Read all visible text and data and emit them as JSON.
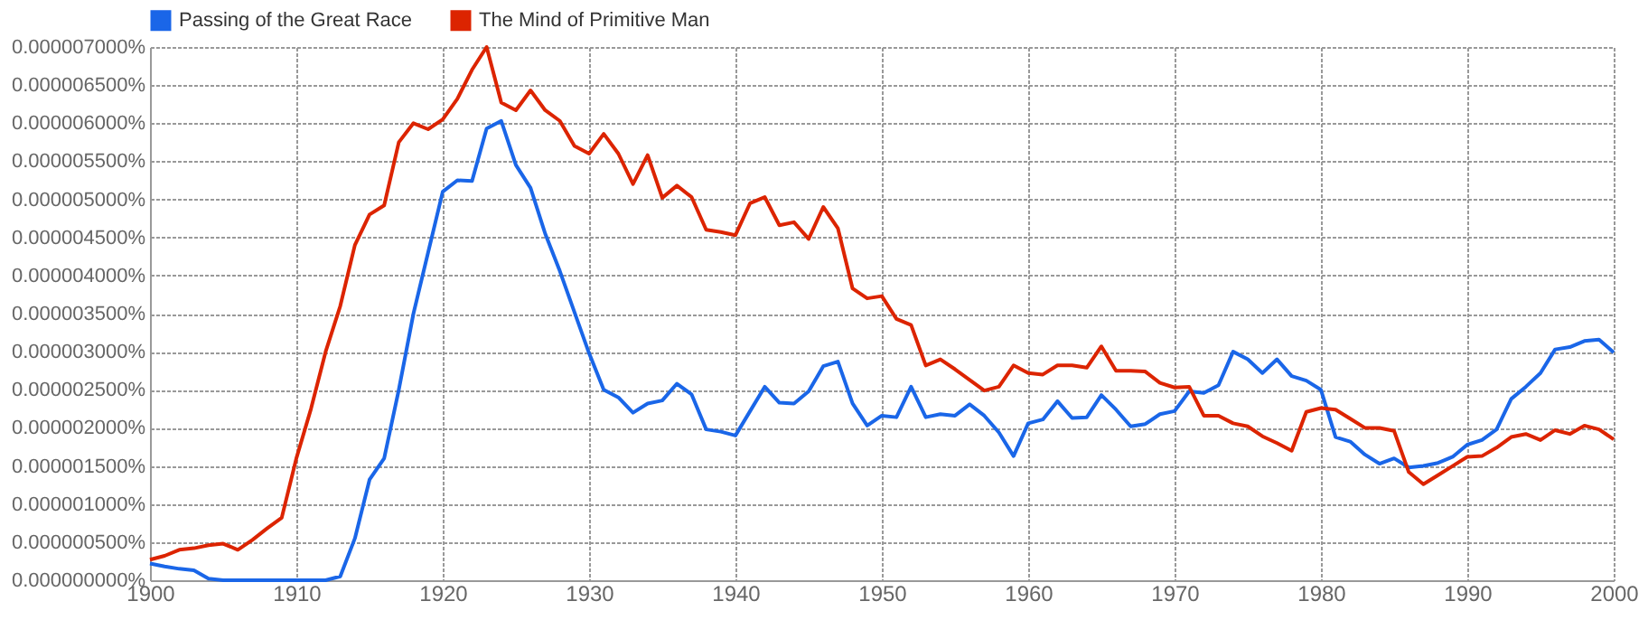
{
  "chart_data": {
    "type": "line",
    "x": [
      1900,
      1901,
      1902,
      1903,
      1904,
      1905,
      1906,
      1907,
      1908,
      1909,
      1910,
      1911,
      1912,
      1913,
      1914,
      1915,
      1916,
      1917,
      1918,
      1919,
      1920,
      1921,
      1922,
      1923,
      1924,
      1925,
      1926,
      1927,
      1928,
      1929,
      1930,
      1931,
      1932,
      1933,
      1934,
      1935,
      1936,
      1937,
      1938,
      1939,
      1940,
      1941,
      1942,
      1943,
      1944,
      1945,
      1946,
      1947,
      1948,
      1949,
      1950,
      1951,
      1952,
      1953,
      1954,
      1955,
      1956,
      1957,
      1958,
      1959,
      1960,
      1961,
      1962,
      1963,
      1964,
      1965,
      1966,
      1967,
      1968,
      1969,
      1970,
      1971,
      1972,
      1973,
      1974,
      1975,
      1976,
      1977,
      1978,
      1979,
      1980,
      1981,
      1982,
      1983,
      1984,
      1985,
      1986,
      1987,
      1988,
      1989,
      1990,
      1991,
      1992,
      1993,
      1994,
      1995,
      1996,
      1997,
      1998,
      1999,
      2000
    ],
    "series": [
      {
        "name": "Passing of the Great Race",
        "color": "#1a66e8",
        "values": [
          2.2e-07,
          1.8e-07,
          1.5e-07,
          1.3e-07,
          2e-08,
          0,
          0,
          0,
          0,
          0,
          0,
          0,
          0,
          5e-08,
          5.5e-07,
          1.32e-06,
          1.6e-06,
          2.5e-06,
          3.5e-06,
          4.3e-06,
          5.1e-06,
          5.25e-06,
          5.24e-06,
          5.93e-06,
          6.03e-06,
          5.45e-06,
          5.15e-06,
          4.55e-06,
          4.06e-06,
          3.52e-06,
          2.98e-06,
          2.5e-06,
          2.4e-06,
          2.2e-06,
          2.32e-06,
          2.36e-06,
          2.58e-06,
          2.44e-06,
          1.98e-06,
          1.95e-06,
          1.9e-06,
          2.22e-06,
          2.54e-06,
          2.33e-06,
          2.32e-06,
          2.48e-06,
          2.81e-06,
          2.87e-06,
          2.32e-06,
          2.03e-06,
          2.16e-06,
          2.14e-06,
          2.54e-06,
          2.14e-06,
          2.18e-06,
          2.16e-06,
          2.31e-06,
          2.16e-06,
          1.94e-06,
          1.63e-06,
          2.06e-06,
          2.11e-06,
          2.35e-06,
          2.13e-06,
          2.14e-06,
          2.43e-06,
          2.24e-06,
          2.02e-06,
          2.05e-06,
          2.18e-06,
          2.22e-06,
          2.48e-06,
          2.46e-06,
          2.56e-06,
          3e-06,
          2.9e-06,
          2.72e-06,
          2.9e-06,
          2.68e-06,
          2.62e-06,
          2.5e-06,
          1.88e-06,
          1.82e-06,
          1.65e-06,
          1.53e-06,
          1.6e-06,
          1.48e-06,
          1.5e-06,
          1.54e-06,
          1.62e-06,
          1.78e-06,
          1.84e-06,
          1.98e-06,
          2.38e-06,
          2.54e-06,
          2.72e-06,
          3.03e-06,
          3.06e-06,
          3.14e-06,
          3.16e-06,
          2.99e-06
        ]
      },
      {
        "name": "The Mind of Primitive Man",
        "color": "#dc2400",
        "values": [
          2.7e-07,
          3.2e-07,
          4e-07,
          4.2e-07,
          4.6e-07,
          4.8e-07,
          4e-07,
          5.3e-07,
          6.8e-07,
          8.2e-07,
          1.6e-06,
          2.25e-06,
          3e-06,
          3.6e-06,
          4.4e-06,
          4.8e-06,
          4.92e-06,
          5.75e-06,
          6e-06,
          5.92e-06,
          6.05e-06,
          6.32e-06,
          6.7e-06,
          7e-06,
          6.27e-06,
          6.17e-06,
          6.43e-06,
          6.17e-06,
          6.03e-06,
          5.7e-06,
          5.6e-06,
          5.86e-06,
          5.6e-06,
          5.2e-06,
          5.58e-06,
          5.02e-06,
          5.18e-06,
          5.03e-06,
          4.6e-06,
          4.57e-06,
          4.53e-06,
          4.95e-06,
          5.03e-06,
          4.66e-06,
          4.7e-06,
          4.48e-06,
          4.9e-06,
          4.62e-06,
          3.83e-06,
          3.7e-06,
          3.73e-06,
          3.43e-06,
          3.35e-06,
          2.82e-06,
          2.9e-06,
          2.77e-06,
          2.63e-06,
          2.49e-06,
          2.54e-06,
          2.82e-06,
          2.72e-06,
          2.7e-06,
          2.82e-06,
          2.82e-06,
          2.79e-06,
          3.07e-06,
          2.75e-06,
          2.75e-06,
          2.74e-06,
          2.59e-06,
          2.53e-06,
          2.54e-06,
          2.16e-06,
          2.16e-06,
          2.06e-06,
          2.02e-06,
          1.89e-06,
          1.8e-06,
          1.7e-06,
          2.21e-06,
          2.26e-06,
          2.24e-06,
          2.12e-06,
          2e-06,
          2e-06,
          1.96e-06,
          1.42e-06,
          1.26e-06,
          1.38e-06,
          1.5e-06,
          1.62e-06,
          1.63e-06,
          1.74e-06,
          1.88e-06,
          1.92e-06,
          1.84e-06,
          1.97e-06,
          1.92e-06,
          2.03e-06,
          1.98e-06,
          1.85e-06
        ]
      }
    ],
    "xlim": [
      1900,
      2000
    ],
    "xticks": [
      1900,
      1910,
      1920,
      1930,
      1940,
      1950,
      1960,
      1970,
      1980,
      1990,
      2000
    ],
    "ylim": [
      0,
      7e-06
    ],
    "yticks": [
      {
        "value": 0,
        "label": "0.000000000%"
      },
      {
        "value": 5e-07,
        "label": "0.000000500%"
      },
      {
        "value": 1e-06,
        "label": "0.000001000%"
      },
      {
        "value": 1.5e-06,
        "label": "0.000001500%"
      },
      {
        "value": 2e-06,
        "label": "0.000002000%"
      },
      {
        "value": 2.5e-06,
        "label": "0.000002500%"
      },
      {
        "value": 3e-06,
        "label": "0.000003000%"
      },
      {
        "value": 3.5e-06,
        "label": "0.000003500%"
      },
      {
        "value": 4e-06,
        "label": "0.000004000%"
      },
      {
        "value": 4.5e-06,
        "label": "0.000004500%"
      },
      {
        "value": 5e-06,
        "label": "0.000005000%"
      },
      {
        "value": 5.5e-06,
        "label": "0.000005500%"
      },
      {
        "value": 6e-06,
        "label": "0.000006000%"
      },
      {
        "value": 6.5e-06,
        "label": "0.000006500%"
      },
      {
        "value": 7e-06,
        "label": "0.000007000%"
      }
    ],
    "grid": true,
    "legend": "top",
    "marker": "none",
    "line_style": "solid"
  }
}
